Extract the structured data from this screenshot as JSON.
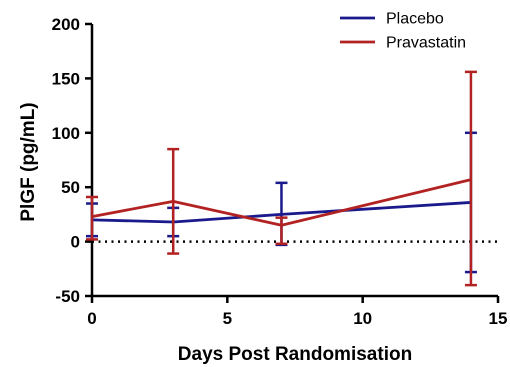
{
  "chart_data": {
    "type": "line",
    "title": "",
    "xlabel": "Days Post Randomisation",
    "ylabel": "PlGF (pg/mL)",
    "xlim": [
      0,
      15
    ],
    "ylim": [
      -50,
      200
    ],
    "x_ticks": [
      "0",
      "5",
      "10",
      "15"
    ],
    "y_ticks": [
      "-50",
      "0",
      "50",
      "100",
      "150",
      "200"
    ],
    "reference_line": {
      "y": 0,
      "style": "dotted"
    },
    "legend_position": "top-right",
    "error_bars": true,
    "series": [
      {
        "name": "Placebo",
        "color": "#1a1a8c",
        "x": [
          0,
          3,
          7,
          14
        ],
        "y": [
          20,
          18,
          25,
          36
        ],
        "err_low": [
          5,
          5,
          -3,
          -28
        ],
        "err_high": [
          35,
          31,
          54,
          100
        ]
      },
      {
        "name": "Pravastatin",
        "color": "#b22222",
        "x": [
          0,
          3,
          7,
          14
        ],
        "y": [
          23,
          37,
          15,
          57
        ],
        "err_low": [
          2,
          -11,
          -2,
          -40
        ],
        "err_high": [
          41,
          85,
          22,
          156
        ]
      }
    ]
  }
}
